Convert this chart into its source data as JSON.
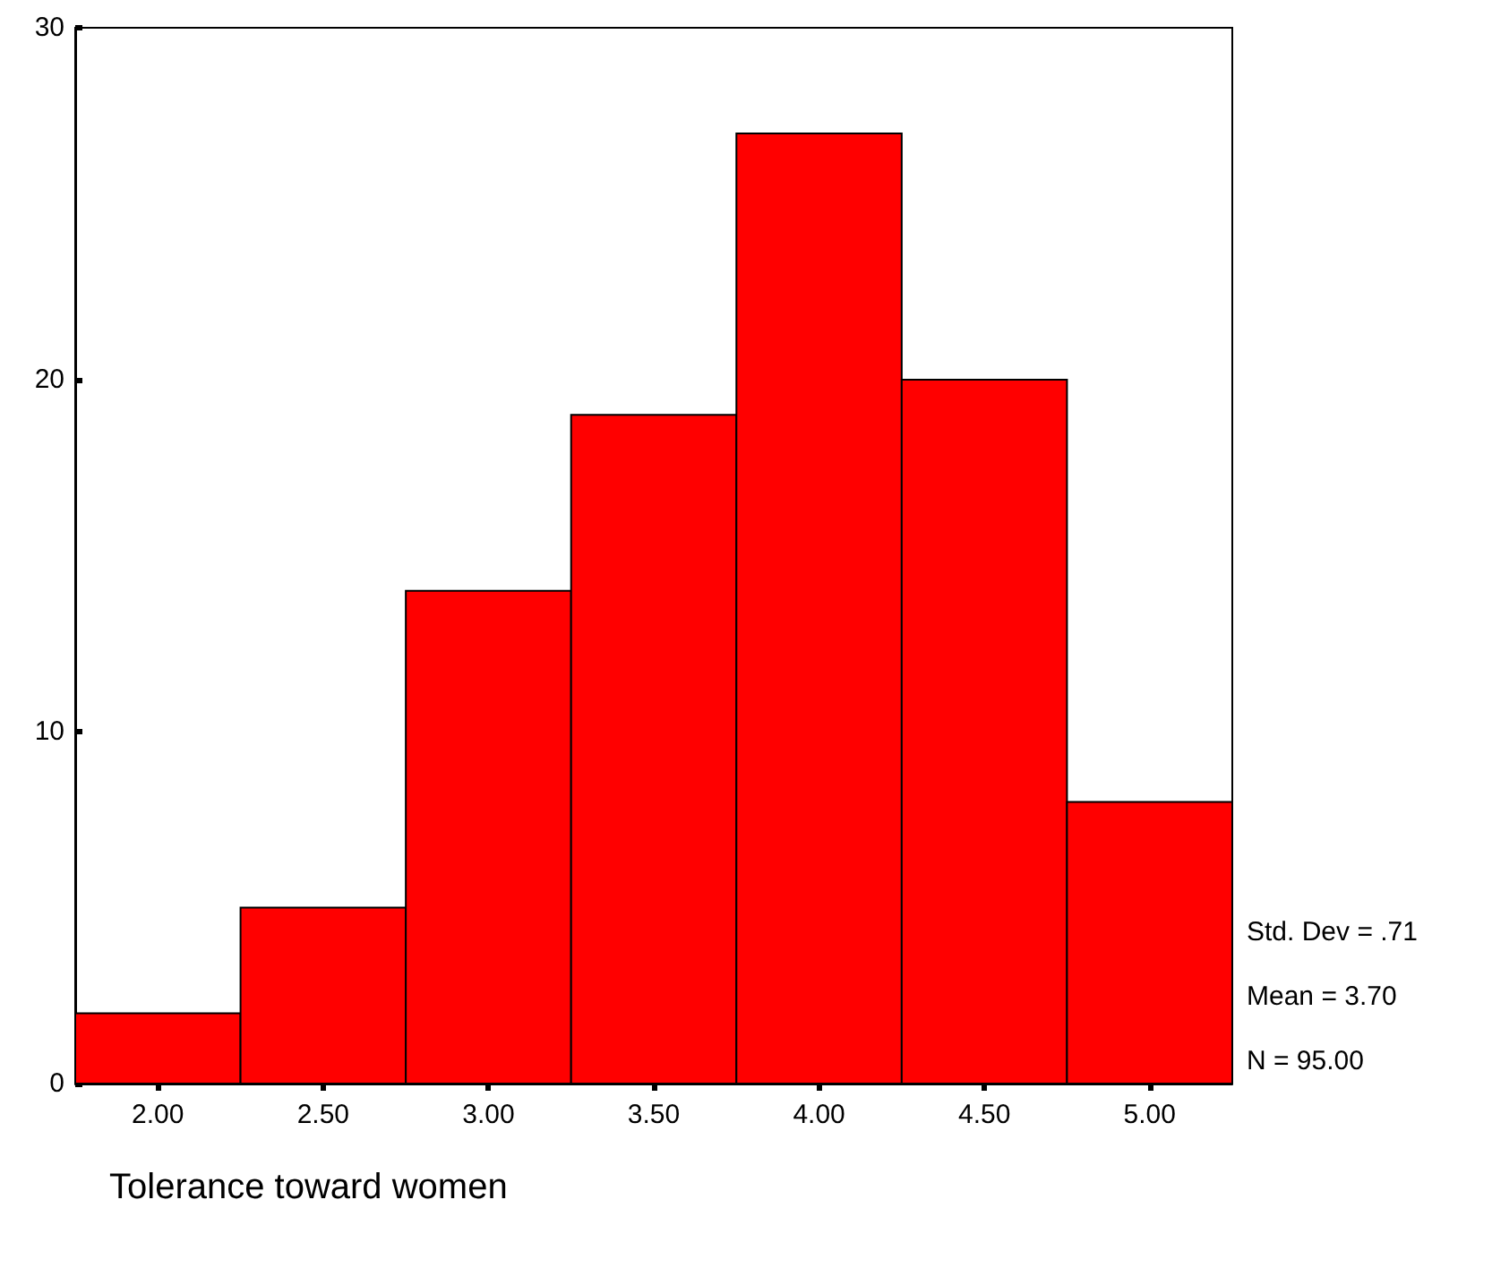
{
  "chart_data": {
    "type": "histogram",
    "xlabel": "Tolerance toward women",
    "bins": [
      1.75,
      2.25,
      2.75,
      3.25,
      3.75,
      4.25,
      4.75,
      5.25
    ],
    "values": [
      2,
      5,
      14,
      19,
      27,
      20,
      8
    ],
    "color": "#ff0000",
    "xlim": [
      1.75,
      5.25
    ],
    "xticks": [
      {
        "value": 2,
        "label": "2.00"
      },
      {
        "value": 2.5,
        "label": "2.50"
      },
      {
        "value": 3,
        "label": "3.00"
      },
      {
        "value": 3.5,
        "label": "3.50"
      },
      {
        "value": 4,
        "label": "4.00"
      },
      {
        "value": 4.5,
        "label": "4.50"
      },
      {
        "value": 5,
        "label": "5.00"
      }
    ],
    "ylim": [
      0,
      30
    ],
    "yticks": [
      0,
      10,
      20,
      30
    ],
    "annotations": [
      "Std. Dev = .71",
      "Mean = 3.70",
      "N = 95.00"
    ]
  }
}
